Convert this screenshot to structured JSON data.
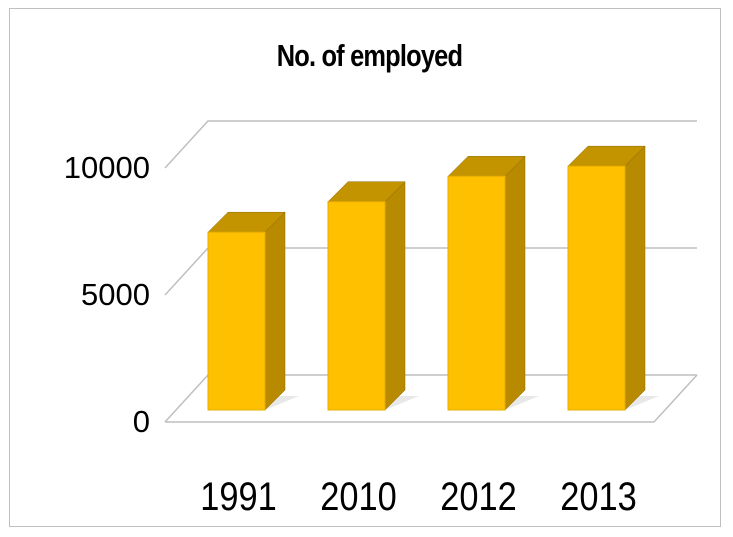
{
  "chart_data": {
    "type": "bar",
    "title": "No. of employed",
    "categories": [
      "1991",
      "2010",
      "2012",
      "2013"
    ],
    "series": [
      {
        "values": [
          7000,
          8200,
          9200,
          9600
        ]
      }
    ],
    "ylim": [
      0,
      10000
    ],
    "yticks": [
      "0",
      "5000",
      "10000"
    ],
    "grid": true,
    "style": "3d-column",
    "colors": {
      "front": "#FFC000",
      "side": "#B88A00",
      "top": "#C49300",
      "grid": "#BFBFBF"
    }
  }
}
